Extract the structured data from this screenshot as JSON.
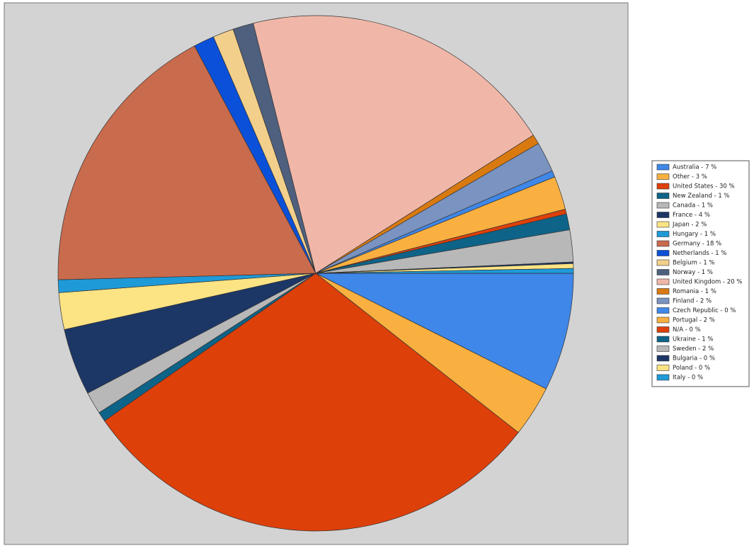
{
  "chart_data": {
    "type": "pie",
    "categories": [
      "Australia - 7 %",
      "Other - 3 %",
      "United States - 30 %",
      "New Zealand - 1 %",
      "Canada - 1 %",
      "France - 4 %",
      "Japan - 2 %",
      "Hungary - 1 %",
      "Germany - 18 %",
      "Netherlands - 1 %",
      "Belgium - 1 %",
      "Norway - 1 %",
      "United Kingdom - 20 %",
      "Romania - 1 %",
      "Finland - 2 %",
      "Czech Republic - 0 %",
      "Portugal - 2 %",
      "N/A - 0 %",
      "Ukraine - 1 %",
      "Sweden - 2 %",
      "Bulgaria - 0 %",
      "Poland - 0 %",
      "Italy - 0 %"
    ],
    "values": [
      7.4,
      3.2,
      29.7,
      0.6,
      1.4,
      4.2,
      2.3,
      0.8,
      17.6,
      1.3,
      1.3,
      1.3,
      19.9,
      0.6,
      1.9,
      0.4,
      2.1,
      0.3,
      1.0,
      2.0,
      0.1,
      0.3,
      0.3
    ],
    "colors": [
      "#3f87e8",
      "#f9b040",
      "#de400a",
      "#0e6388",
      "#b8b8b8",
      "#1c3766",
      "#fce384",
      "#1f9ad8",
      "#c96b4d",
      "#0b50d9",
      "#f2d08c",
      "#4e607e",
      "#f0b7a8",
      "#d97a10",
      "#7a93c0",
      "#3f87e8",
      "#f9b040",
      "#de400a",
      "#0e6388",
      "#b8b8b8",
      "#1c3766",
      "#fce384",
      "#1f9ad8"
    ],
    "legend": "right"
  }
}
